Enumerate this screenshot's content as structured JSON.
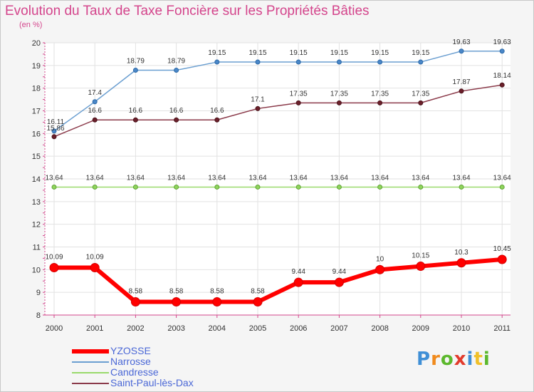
{
  "chart_data": {
    "type": "line",
    "title": "Evolution du Taux de Taxe Foncière sur les Propriétés Bâties",
    "ylabel": "(en %)",
    "xlabel": "",
    "categories": [
      "2000",
      "2001",
      "2002",
      "2003",
      "2004",
      "2005",
      "2006",
      "2007",
      "2008",
      "2009",
      "2010",
      "2011"
    ],
    "ylim": [
      8,
      20
    ],
    "yticks": [
      8,
      9,
      10,
      11,
      12,
      13,
      14,
      15,
      16,
      17,
      18,
      19,
      20
    ],
    "ytick_labels": [
      "8",
      "9",
      "10",
      "11",
      "12",
      "13",
      "14",
      "15",
      "16",
      "17",
      "18",
      "19",
      "20"
    ],
    "grid": true,
    "series": [
      {
        "name": "YZOSSE",
        "color": "#ff0000",
        "values": [
          10.09,
          10.09,
          8.58,
          8.58,
          8.58,
          8.58,
          9.44,
          9.44,
          10,
          10.15,
          10.3,
          10.45
        ],
        "labels": [
          "10.09",
          "10.09",
          "8.58",
          "8.58",
          "8.58",
          "8.58",
          "9.44",
          "9.44",
          "10",
          "10.15",
          "10.3",
          "10.45"
        ]
      },
      {
        "name": "Narrosse",
        "color": "#6b9fd1",
        "values": [
          16.11,
          17.4,
          18.79,
          18.79,
          19.15,
          19.15,
          19.15,
          19.15,
          19.15,
          19.15,
          19.63,
          19.63
        ],
        "labels": [
          "16.11",
          "17.4",
          "18.79",
          "18.79",
          "19.15",
          "19.15",
          "19.15",
          "19.15",
          "19.15",
          "19.15",
          "19.63",
          "19.63"
        ]
      },
      {
        "name": "Candresse",
        "color": "#99d96b",
        "values": [
          13.64,
          13.64,
          13.64,
          13.64,
          13.64,
          13.64,
          13.64,
          13.64,
          13.64,
          13.64,
          13.64,
          13.64
        ],
        "labels": [
          "13.64",
          "13.64",
          "13.64",
          "13.64",
          "13.64",
          "13.64",
          "13.64",
          "13.64",
          "13.64",
          "13.64",
          "13.64",
          "13.64"
        ]
      },
      {
        "name": "Saint-Paul-lès-Dax",
        "color": "#7a2a3a",
        "values": [
          15.86,
          16.6,
          16.6,
          16.6,
          16.6,
          17.1,
          17.35,
          17.35,
          17.35,
          17.35,
          17.87,
          18.14
        ],
        "labels": [
          "15.86",
          "16.6",
          "16.6",
          "16.6",
          "16.6",
          "17.1",
          "17.35",
          "17.35",
          "17.35",
          "17.35",
          "17.87",
          "18.14"
        ]
      }
    ],
    "legend": {
      "position": "bottom-left"
    }
  },
  "logo": {
    "text": "Proxiti",
    "letters": [
      {
        "ch": "P",
        "color": "#3f8fd6"
      },
      {
        "ch": "r",
        "color": "#f08a1d"
      },
      {
        "ch": "o",
        "color": "#5cb82d"
      },
      {
        "ch": "x",
        "color": "#e23b2c"
      },
      {
        "ch": "i",
        "color": "#3f8fd6"
      },
      {
        "ch": "t",
        "color": "#f0c02a"
      },
      {
        "ch": "i",
        "color": "#5cb82d"
      }
    ]
  }
}
